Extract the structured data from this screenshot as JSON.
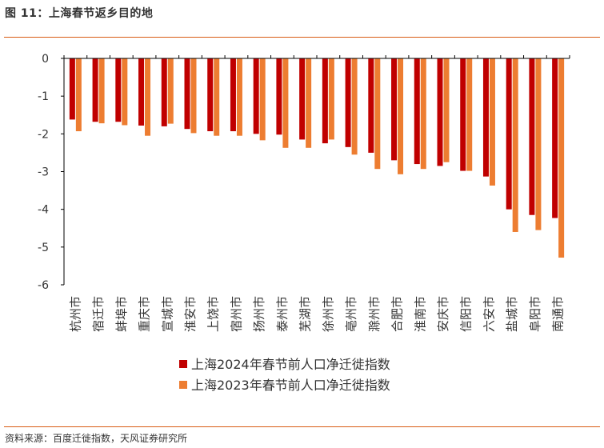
{
  "figure": {
    "title": "图 11：上海春节返乡目的地",
    "source": "资料来源：百度迁徙指数，天风证券研究所"
  },
  "colors": {
    "accent": "#d95b13",
    "series_2024": "#c00000",
    "series_2023": "#ed7d31"
  },
  "chart_data": {
    "type": "bar",
    "categories": [
      "杭州市",
      "宿迁市",
      "蚌埠市",
      "重庆市",
      "宣城市",
      "淮安市",
      "上饶市",
      "宿州市",
      "扬州市",
      "泰州市",
      "芜湖市",
      "徐州市",
      "亳州市",
      "滁州市",
      "合肥市",
      "淮南市",
      "安庆市",
      "信阳市",
      "六安市",
      "盐城市",
      "阜阳市",
      "南通市"
    ],
    "series": [
      {
        "name": "上海2024年春节前人口净迁徙指数",
        "color": "#c00000",
        "values": [
          -1.62,
          -1.68,
          -1.68,
          -1.78,
          -1.8,
          -1.87,
          -1.93,
          -1.93,
          -2.0,
          -2.02,
          -2.15,
          -2.25,
          -2.35,
          -2.5,
          -2.7,
          -2.8,
          -2.85,
          -2.98,
          -3.13,
          -4.0,
          -4.15,
          -4.23
        ]
      },
      {
        "name": "上海2023年春节前人口净迁徙指数",
        "color": "#ed7d31",
        "values": [
          -1.93,
          -1.72,
          -1.77,
          -2.05,
          -1.73,
          -1.98,
          -2.05,
          -2.05,
          -2.17,
          -2.37,
          -2.37,
          -2.15,
          -2.55,
          -2.93,
          -3.07,
          -2.93,
          -2.75,
          -2.98,
          -3.37,
          -4.6,
          -4.55,
          -5.28
        ]
      }
    ],
    "yticks": [
      0,
      -1,
      -2,
      -3,
      -4,
      -5,
      -6
    ],
    "ylim": [
      -6,
      0
    ],
    "grid": false,
    "legend_position": "bottom-center"
  }
}
